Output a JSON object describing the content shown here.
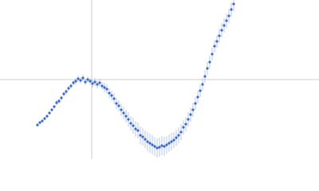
{
  "chart_data": {
    "type": "scatter",
    "x": [
      -68,
      -65,
      -62,
      -59,
      -56,
      -53,
      -50,
      -47,
      -44,
      -41,
      -38,
      -35,
      -32,
      -29,
      -26,
      -23,
      -20,
      -17,
      -14,
      -11,
      -8,
      -5,
      -2,
      1,
      4,
      7,
      10,
      13,
      16,
      19,
      22,
      25,
      28,
      31,
      34,
      37,
      40,
      43,
      46,
      49,
      52,
      55,
      58,
      61,
      64,
      67,
      70,
      73,
      76,
      79,
      82,
      85,
      88,
      91,
      94,
      97,
      100,
      103,
      106,
      109,
      112,
      115,
      118,
      121,
      124,
      127,
      130,
      133,
      136,
      139,
      142,
      145,
      148,
      151,
      154,
      157,
      160,
      163,
      166,
      169,
      172,
      175,
      178
    ],
    "values": [
      -57,
      -54,
      -52,
      -49,
      -46,
      -42,
      -38,
      -34,
      -29,
      -27,
      -23,
      -18,
      -15,
      -11,
      -8,
      -4,
      -2,
      1,
      -1,
      2,
      -3,
      0,
      -2,
      -5,
      -3,
      -6,
      -4,
      -8,
      -10,
      -12,
      -17,
      -20,
      -24,
      -30,
      -33,
      -38,
      -42,
      -46,
      -50,
      -55,
      -58,
      -62,
      -64,
      -70,
      -72,
      -75,
      -78,
      -80,
      -82,
      -84,
      -86,
      -85,
      -83,
      -84,
      -82,
      -80,
      -78,
      -76,
      -73,
      -70,
      -66,
      -60,
      -56,
      -50,
      -44,
      -38,
      -30,
      -22,
      -14,
      -6,
      4,
      14,
      22,
      32,
      42,
      48,
      55,
      62,
      68,
      74,
      80,
      88,
      95
    ],
    "errors": [
      2,
      2,
      2,
      2,
      2,
      2,
      2,
      2,
      3,
      3,
      3,
      3,
      3,
      3,
      3,
      3,
      4,
      4,
      4,
      4,
      4,
      4,
      4,
      5,
      5,
      5,
      5,
      5,
      6,
      6,
      6,
      6,
      7,
      7,
      7,
      8,
      8,
      8,
      9,
      9,
      10,
      10,
      10,
      11,
      11,
      11,
      12,
      12,
      12,
      12,
      12,
      12,
      12,
      12,
      11,
      11,
      11,
      10,
      10,
      10,
      10,
      9,
      9,
      9,
      9,
      9,
      8,
      8,
      8,
      8,
      8,
      8,
      8,
      8,
      8,
      8,
      9,
      9,
      9,
      9,
      9,
      9,
      9
    ],
    "color": "#3a6bc6",
    "error_color": "#b9c7e4",
    "xlim": [
      -115,
      285
    ],
    "ylim": [
      -100,
      100
    ],
    "zero_lines": true
  }
}
